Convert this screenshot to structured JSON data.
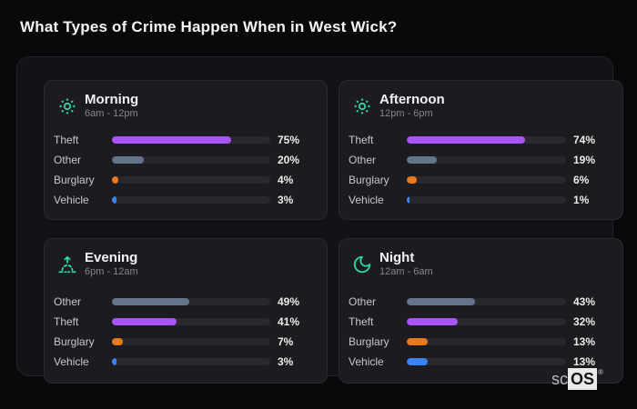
{
  "page": {
    "title": "What Types of Crime Happen When in West Wick?"
  },
  "colors": {
    "background": "#09090b",
    "container": "#131216",
    "panel": "#1c1b20",
    "track": "#29282f",
    "icon_accent": "#2fd3a5",
    "category_colors": {
      "Theft": "#a855f7",
      "Other": "#64748b",
      "Burglary": "#e8791f",
      "Vehicle": "#3b82f6"
    }
  },
  "watermark": {
    "prefix": "sc",
    "boxed": "OS",
    "mark": "®"
  },
  "chart_data": [
    {
      "type": "bar",
      "orientation": "horizontal",
      "title": "Morning",
      "subtitle": "6am - 12pm",
      "icon": "dotted-sun-icon",
      "categories": [
        "Theft",
        "Other",
        "Burglary",
        "Vehicle"
      ],
      "values": [
        75,
        20,
        4,
        3
      ],
      "unit": "%",
      "xlim": [
        0,
        100
      ],
      "grid": false,
      "legend": false
    },
    {
      "type": "bar",
      "orientation": "horizontal",
      "title": "Afternoon",
      "subtitle": "12pm - 6pm",
      "icon": "dotted-sun-icon",
      "categories": [
        "Theft",
        "Other",
        "Burglary",
        "Vehicle"
      ],
      "values": [
        74,
        19,
        6,
        1
      ],
      "unit": "%",
      "xlim": [
        0,
        100
      ],
      "grid": false,
      "legend": false
    },
    {
      "type": "bar",
      "orientation": "horizontal",
      "title": "Evening",
      "subtitle": "6pm - 12am",
      "icon": "sunrise-icon",
      "categories": [
        "Other",
        "Theft",
        "Burglary",
        "Vehicle"
      ],
      "values": [
        49,
        41,
        7,
        3
      ],
      "unit": "%",
      "xlim": [
        0,
        100
      ],
      "grid": false,
      "legend": false
    },
    {
      "type": "bar",
      "orientation": "horizontal",
      "title": "Night",
      "subtitle": "12am - 6am",
      "icon": "moon-icon",
      "categories": [
        "Other",
        "Theft",
        "Burglary",
        "Vehicle"
      ],
      "values": [
        43,
        32,
        13,
        13
      ],
      "unit": "%",
      "xlim": [
        0,
        100
      ],
      "grid": false,
      "legend": false
    }
  ]
}
